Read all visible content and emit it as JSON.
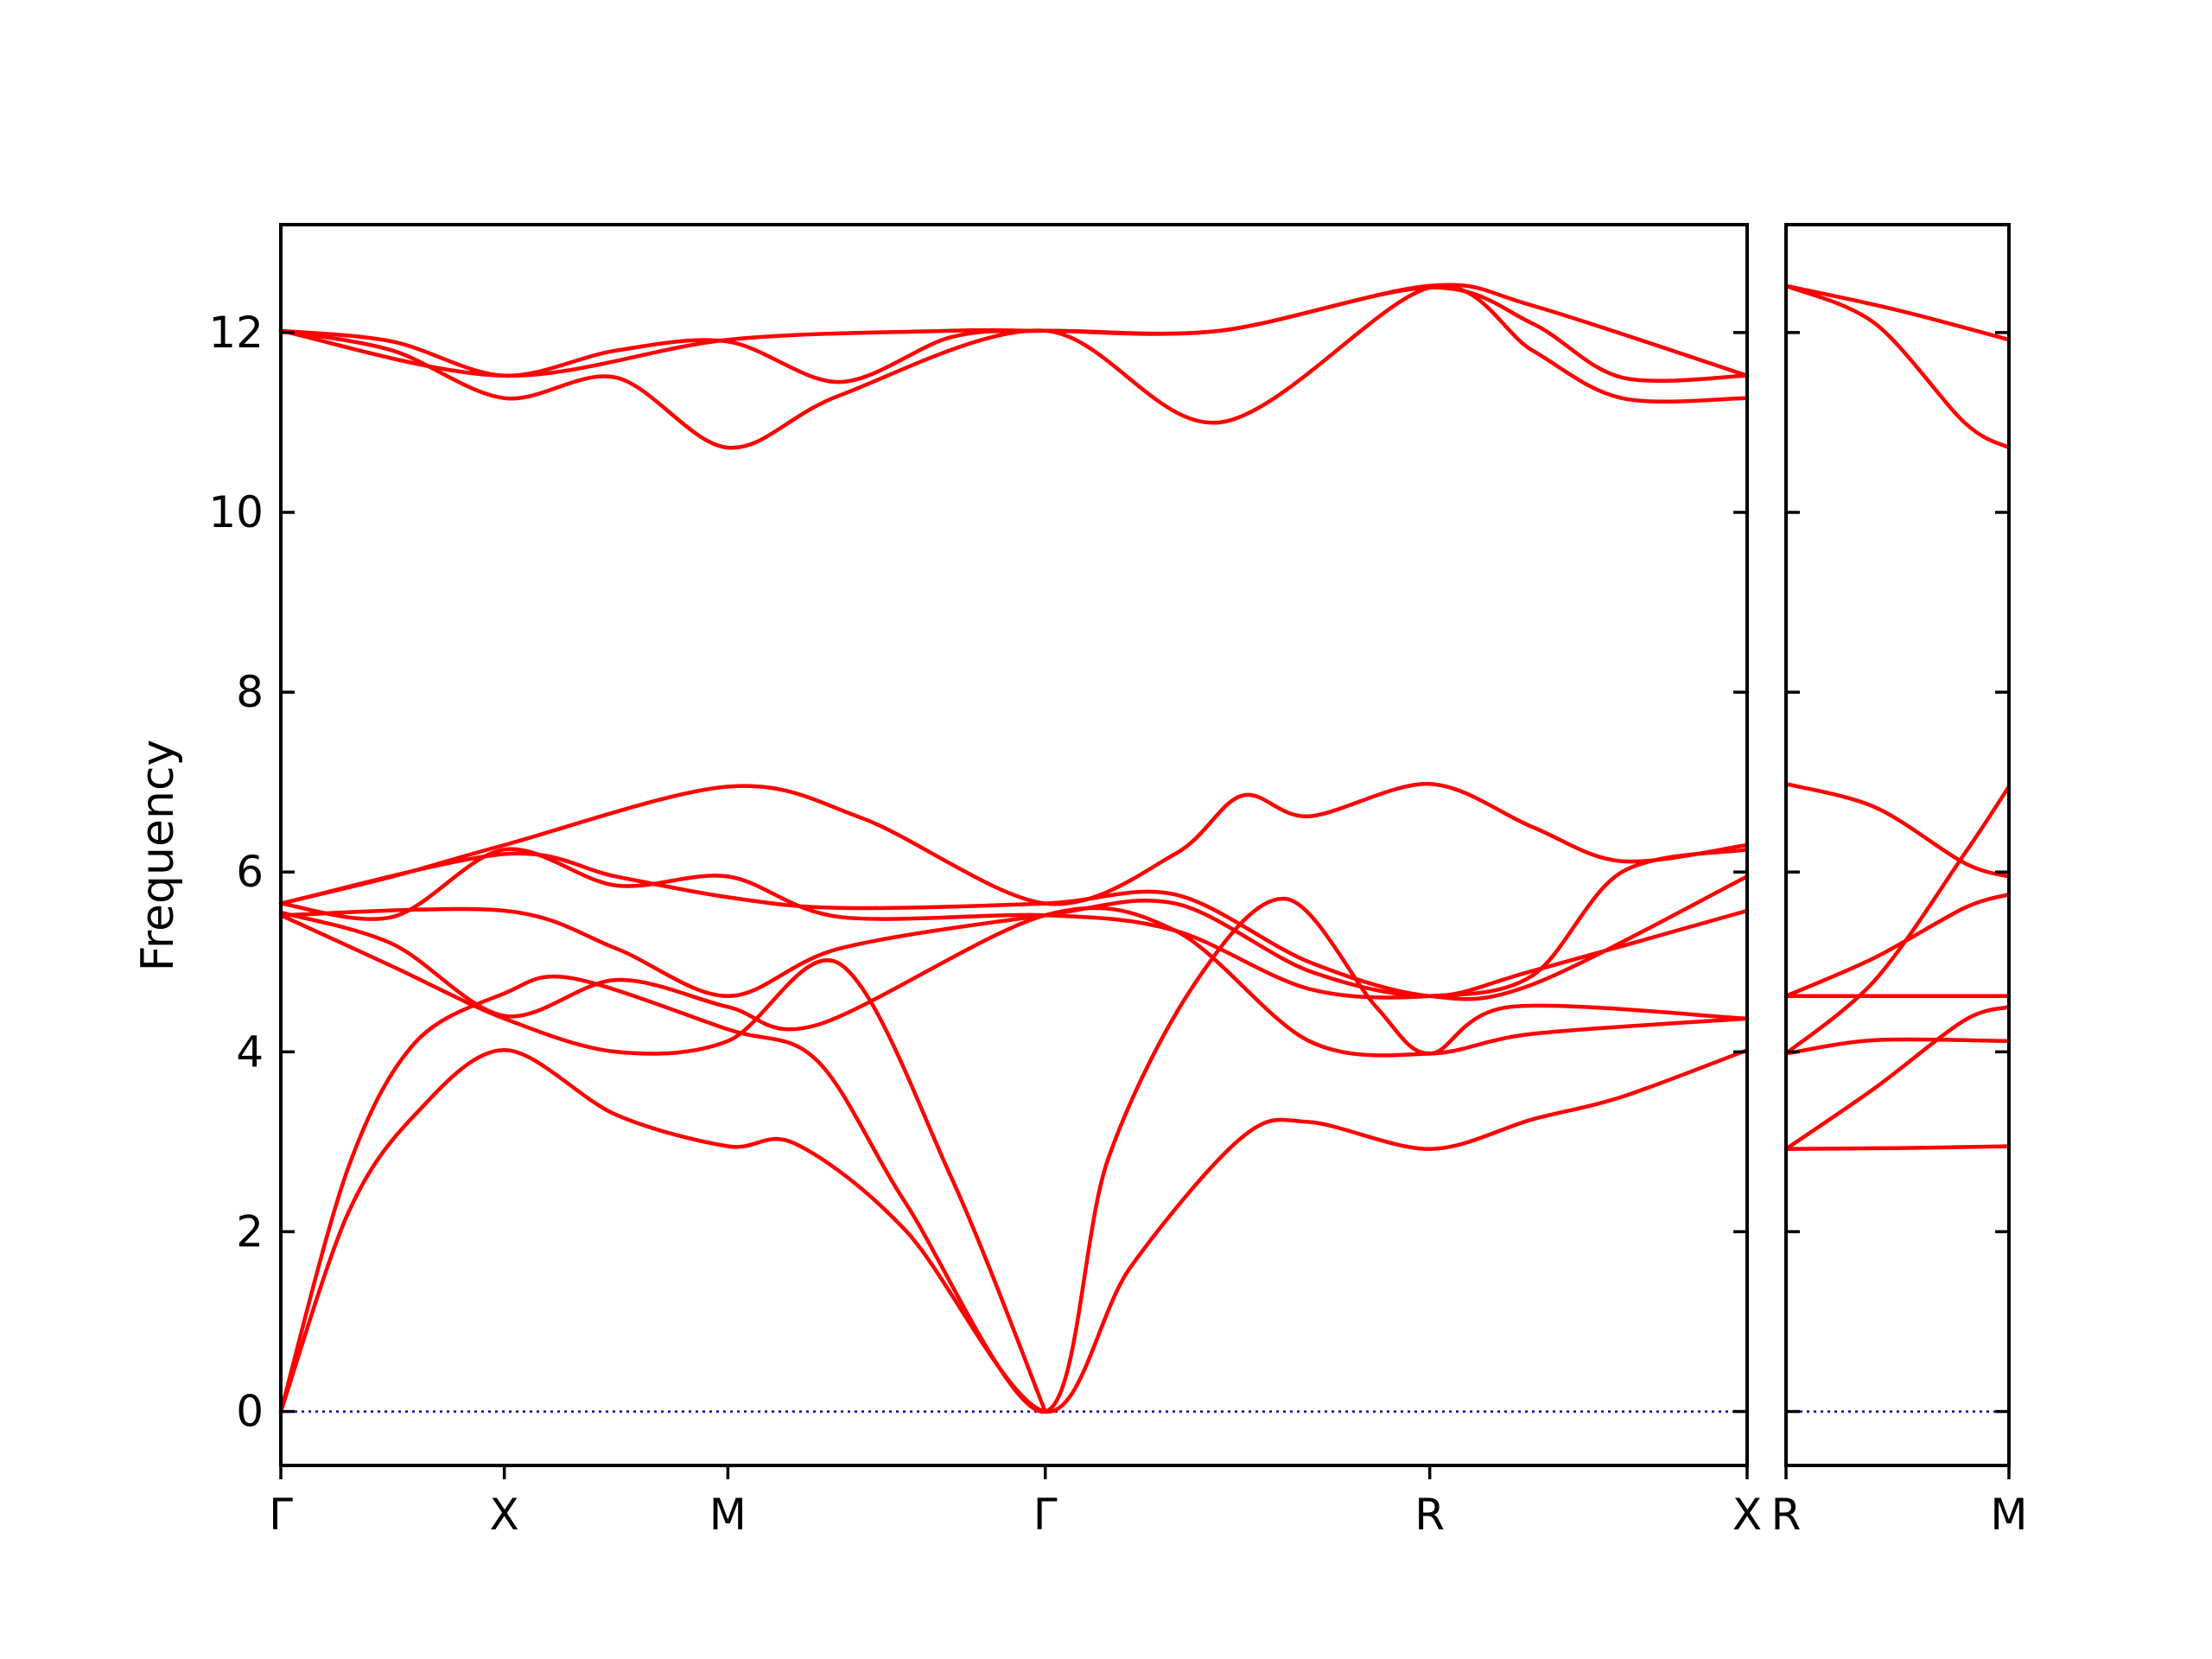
{
  "chart_data": {
    "type": "line",
    "ylabel": "Frequency",
    "ylim": [
      -0.6,
      13.2
    ],
    "yticks": [
      0,
      2,
      4,
      6,
      8,
      10,
      12
    ],
    "colors": {
      "bands": "#ff0000",
      "zero_line": "#0000aa",
      "frame": "#000000"
    },
    "panels": [
      {
        "name": "main",
        "xticks": [
          {
            "pos": 0,
            "label": "Γ"
          },
          {
            "pos": 1,
            "label": "X"
          },
          {
            "pos": 2,
            "label": "M"
          },
          {
            "pos": 3.42,
            "label": "Γ"
          },
          {
            "pos": 5.14,
            "label": "R"
          },
          {
            "pos": 6.56,
            "label": "X"
          }
        ],
        "xlim": [
          0,
          6.56
        ],
        "series": [
          {
            "values": [
              [
                0,
                0
              ],
              [
                0.3,
                2.2
              ],
              [
                0.6,
                3.3
              ],
              [
                1,
                4.02
              ],
              [
                1.5,
                3.3
              ],
              [
                2,
                2.95
              ],
              [
                2.3,
                2.98
              ],
              [
                2.8,
                2.0
              ],
              [
                3.42,
                0
              ],
              [
                3.8,
                1.6
              ],
              [
                4.3,
                3.05
              ],
              [
                4.6,
                3.22
              ],
              [
                5.14,
                2.92
              ],
              [
                5.6,
                3.25
              ],
              [
                6.0,
                3.5
              ],
              [
                6.56,
                4.02
              ]
            ]
          },
          {
            "values": [
              [
                0,
                0
              ],
              [
                0.3,
                2.7
              ],
              [
                0.6,
                4.1
              ],
              [
                1,
                4.65
              ],
              [
                1.3,
                4.82
              ],
              [
                2,
                4.25
              ],
              [
                2.4,
                3.9
              ],
              [
                2.8,
                2.3
              ],
              [
                3.42,
                0
              ],
              [
                3.7,
                2.8
              ],
              [
                4.1,
                4.8
              ],
              [
                4.5,
                5.7
              ],
              [
                4.9,
                4.5
              ],
              [
                5.14,
                3.98
              ],
              [
                5.5,
                4.5
              ],
              [
                6.56,
                4.37
              ]
            ]
          },
          {
            "values": [
              [
                0,
                5.52
              ],
              [
                0.5,
                4.95
              ],
              [
                1,
                4.37
              ],
              [
                1.5,
                4.0
              ],
              [
                2,
                4.12
              ],
              [
                2.5,
                4.98
              ],
              [
                3.0,
                2.6
              ],
              [
                3.42,
                0
              ]
            ]
          },
          {
            "values": [
              [
                0,
                5.55
              ],
              [
                0.5,
                5.2
              ],
              [
                1,
                4.4
              ],
              [
                1.5,
                4.8
              ],
              [
                2,
                4.5
              ],
              [
                2.4,
                4.3
              ],
              [
                3.42,
                5.52
              ],
              [
                4.0,
                5.35
              ],
              [
                4.6,
                4.12
              ],
              [
                5.14,
                3.98
              ],
              [
                5.6,
                4.2
              ],
              [
                6.56,
                4.37
              ]
            ]
          },
          {
            "values": [
              [
                0,
                5.52
              ],
              [
                1,
                5.57
              ],
              [
                1.5,
                5.15
              ],
              [
                2,
                4.62
              ],
              [
                2.5,
                5.15
              ],
              [
                3.42,
                5.52
              ],
              [
                4.0,
                5.65
              ],
              [
                4.6,
                4.9
              ],
              [
                5.14,
                4.62
              ],
              [
                5.6,
                4.9
              ],
              [
                6.56,
                5.57
              ]
            ]
          },
          {
            "values": [
              [
                0,
                5.65
              ],
              [
                1,
                6.2
              ],
              [
                1.5,
                5.95
              ],
              [
                2,
                5.72
              ],
              [
                2.5,
                5.6
              ],
              [
                3.42,
                5.65
              ],
              [
                4.0,
                5.75
              ],
              [
                4.6,
                5.0
              ],
              [
                5.14,
                4.62
              ],
              [
                5.6,
                4.75
              ],
              [
                6.56,
                5.95
              ]
            ]
          },
          {
            "values": [
              [
                0,
                5.65
              ],
              [
                0.5,
                5.5
              ],
              [
                1,
                6.25
              ],
              [
                1.5,
                5.85
              ],
              [
                2,
                5.95
              ],
              [
                2.5,
                5.5
              ],
              [
                3.42,
                5.52
              ],
              [
                4.0,
                5.35
              ],
              [
                4.6,
                4.7
              ],
              [
                5.14,
                4.62
              ],
              [
                5.6,
                4.85
              ],
              [
                6.0,
                6.0
              ],
              [
                6.56,
                6.25
              ]
            ]
          },
          {
            "values": [
              [
                0,
                5.65
              ],
              [
                0.5,
                5.95
              ],
              [
                1,
                6.3
              ],
              [
                2,
                6.95
              ],
              [
                2.6,
                6.6
              ],
              [
                3.42,
                5.65
              ],
              [
                4.0,
                6.2
              ],
              [
                4.3,
                6.85
              ],
              [
                4.6,
                6.62
              ],
              [
                5.14,
                6.98
              ],
              [
                5.6,
                6.5
              ],
              [
                6.0,
                6.12
              ],
              [
                6.56,
                6.3
              ]
            ]
          },
          {
            "values": [
              [
                0,
                12.02
              ],
              [
                0.5,
                11.8
              ],
              [
                1,
                11.27
              ],
              [
                1.5,
                11.5
              ],
              [
                2,
                10.72
              ],
              [
                2.5,
                11.3
              ],
              [
                3.42,
                12.02
              ],
              [
                4.2,
                11.0
              ],
              [
                5.14,
                12.5
              ],
              [
                5.6,
                11.8
              ],
              [
                6.0,
                11.27
              ],
              [
                6.56,
                11.27
              ]
            ]
          },
          {
            "values": [
              [
                0,
                12.02
              ],
              [
                0.5,
                11.9
              ],
              [
                1,
                11.52
              ],
              [
                1.5,
                11.8
              ],
              [
                2,
                11.9
              ],
              [
                2.5,
                11.45
              ],
              [
                3.0,
                11.95
              ],
              [
                3.42,
                12.02
              ],
              [
                4.2,
                12.02
              ],
              [
                5.14,
                12.5
              ],
              [
                5.6,
                12.1
              ],
              [
                6.0,
                11.5
              ],
              [
                6.56,
                11.52
              ]
            ]
          },
          {
            "values": [
              [
                0,
                12.02
              ],
              [
                1,
                11.52
              ],
              [
                2,
                11.92
              ],
              [
                3.0,
                12.02
              ],
              [
                3.42,
                12.02
              ],
              [
                4.2,
                12.02
              ],
              [
                5.14,
                12.52
              ],
              [
                5.6,
                12.3
              ],
              [
                6.56,
                11.52
              ]
            ]
          }
        ]
      },
      {
        "name": "R-M",
        "xticks": [
          {
            "pos": 0,
            "label": "R"
          },
          {
            "pos": 1,
            "label": "M"
          }
        ],
        "xlim": [
          0,
          1
        ],
        "series": [
          {
            "values": [
              [
                0,
                2.92
              ],
              [
                0.5,
                2.93
              ],
              [
                1,
                2.95
              ]
            ]
          },
          {
            "values": [
              [
                0,
                2.92
              ],
              [
                0.4,
                3.6
              ],
              [
                0.8,
                4.35
              ],
              [
                1,
                4.5
              ]
            ]
          },
          {
            "values": [
              [
                0,
                3.98
              ],
              [
                0.4,
                4.13
              ],
              [
                1,
                4.12
              ]
            ]
          },
          {
            "values": [
              [
                0,
                3.98
              ],
              [
                0.4,
                4.8
              ],
              [
                0.8,
                6.2
              ],
              [
                1,
                6.95
              ]
            ]
          },
          {
            "values": [
              [
                0,
                4.62
              ],
              [
                0.5,
                4.62
              ],
              [
                1,
                4.62
              ]
            ]
          },
          {
            "values": [
              [
                0,
                4.62
              ],
              [
                0.4,
                5.05
              ],
              [
                0.8,
                5.6
              ],
              [
                1,
                5.75
              ]
            ]
          },
          {
            "values": [
              [
                0,
                6.98
              ],
              [
                0.4,
                6.72
              ],
              [
                0.8,
                6.1
              ],
              [
                1,
                5.95
              ]
            ]
          },
          {
            "values": [
              [
                0,
                12.52
              ],
              [
                0.4,
                12.1
              ],
              [
                0.8,
                11.0
              ],
              [
                1,
                10.72
              ]
            ]
          },
          {
            "values": [
              [
                0,
                12.52
              ],
              [
                0.5,
                12.25
              ],
              [
                1,
                11.92
              ]
            ]
          }
        ]
      }
    ]
  }
}
